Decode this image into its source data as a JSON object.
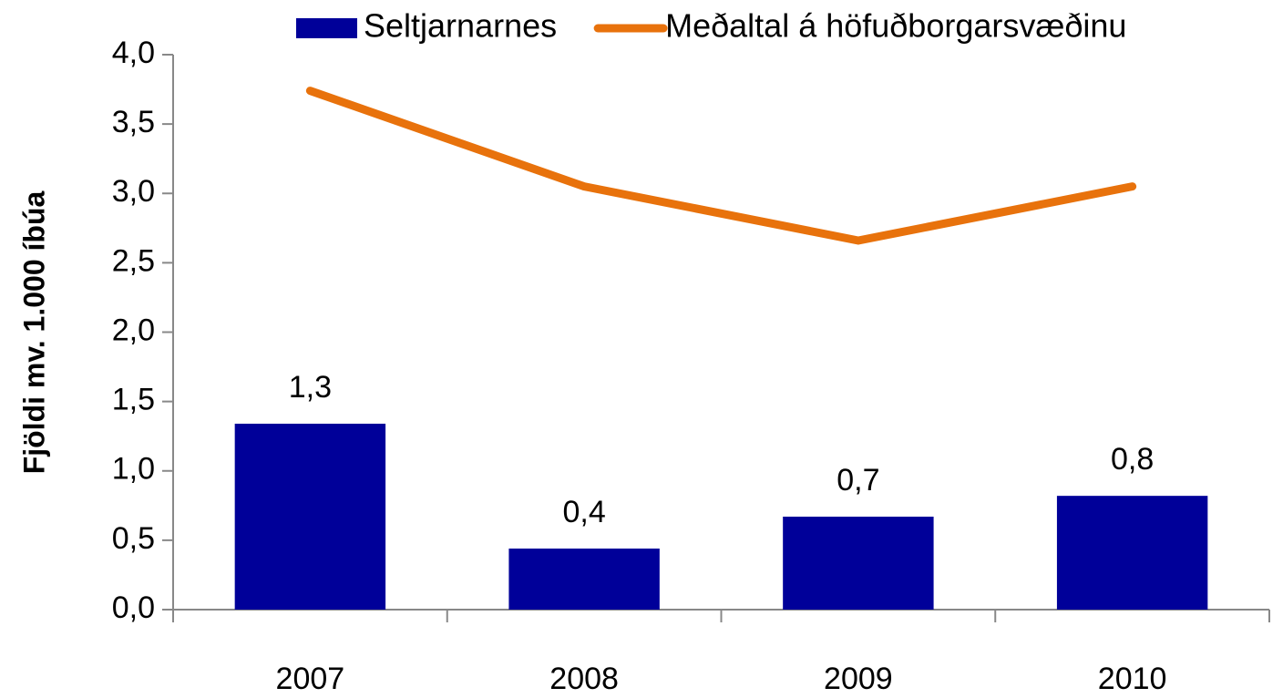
{
  "chart_data": {
    "type": "bar",
    "y_label": "Fjöldi mv. 1.000 íbúa",
    "categories": [
      "2007",
      "2008",
      "2009",
      "2010"
    ],
    "series": [
      {
        "name": "Seltjarnarnes",
        "type": "bar",
        "color": "#000099",
        "values": [
          1.34,
          0.44,
          0.67,
          0.82
        ],
        "value_labels": [
          "1,3",
          "0,4",
          "0,7",
          "0,8"
        ]
      },
      {
        "name": "Meðaltal á höfuðborgarsvæðinu",
        "type": "line",
        "color": "#e8720c",
        "values": [
          3.74,
          3.05,
          2.66,
          3.05
        ]
      }
    ],
    "ylim": [
      0,
      4
    ],
    "yticks": [
      {
        "value": 0,
        "label": "0,0"
      },
      {
        "value": 0.5,
        "label": "0,5"
      },
      {
        "value": 1,
        "label": "1,0"
      },
      {
        "value": 1.5,
        "label": "1,5"
      },
      {
        "value": 2,
        "label": "2,0"
      },
      {
        "value": 2.5,
        "label": "2,5"
      },
      {
        "value": 3,
        "label": "3,0"
      },
      {
        "value": 3.5,
        "label": "3,5"
      },
      {
        "value": 4,
        "label": "4,0"
      }
    ],
    "legend": "top",
    "grid": false
  }
}
